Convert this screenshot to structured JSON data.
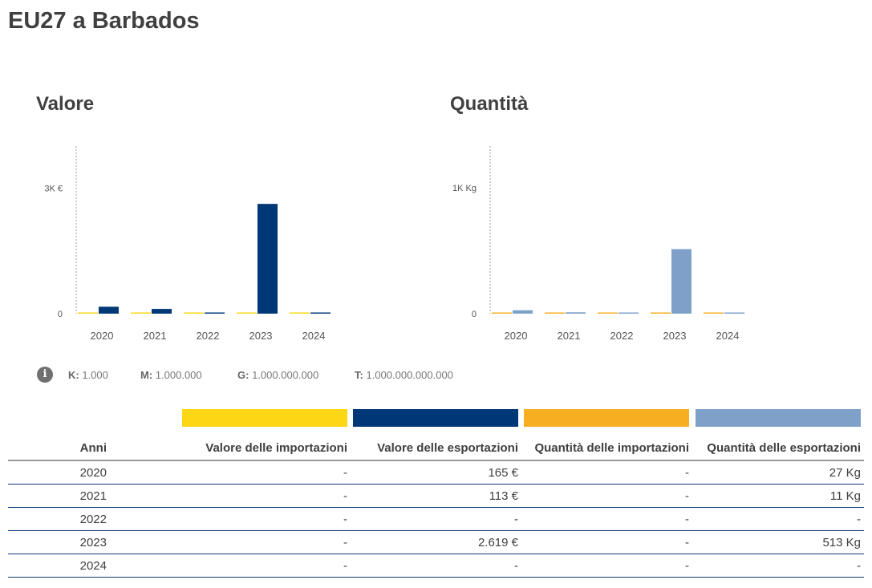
{
  "title": "EU27 a Barbados",
  "colors": {
    "imp_val": "#fdd616",
    "exp_val": "#003776",
    "imp_qty": "#f8ae21",
    "exp_qty": "#7fa1c9"
  },
  "chart_data": [
    {
      "type": "bar",
      "title": "Valore",
      "categories": [
        "2020",
        "2021",
        "2022",
        "2023",
        "2024"
      ],
      "series": [
        {
          "name": "Valore delle importazioni",
          "values": [
            0,
            0,
            0,
            0,
            0
          ]
        },
        {
          "name": "Valore delle esportazioni",
          "values": [
            165,
            113,
            0,
            2619,
            0
          ]
        }
      ],
      "yticks": [
        {
          "value": 0,
          "label": "0"
        },
        {
          "value": 3000,
          "label": "3K €"
        }
      ],
      "ylim": [
        0,
        4000
      ]
    },
    {
      "type": "bar",
      "title": "Quantità",
      "categories": [
        "2020",
        "2021",
        "2022",
        "2023",
        "2024"
      ],
      "series": [
        {
          "name": "Quantità delle importazioni",
          "values": [
            0,
            0,
            0,
            0,
            0
          ]
        },
        {
          "name": "Quantità delle esportazioni",
          "values": [
            27,
            11,
            0,
            513,
            0
          ]
        }
      ],
      "yticks": [
        {
          "value": 0,
          "label": "0"
        },
        {
          "value": 1000,
          "label": "1K Kg"
        }
      ],
      "ylim": [
        0,
        1333
      ]
    }
  ],
  "units": [
    {
      "k": "K:",
      "v": "1.000"
    },
    {
      "k": "M:",
      "v": "1.000.000"
    },
    {
      "k": "G:",
      "v": "1.000.000.000"
    },
    {
      "k": "T:",
      "v": "1.000.000.000.000"
    }
  ],
  "table": {
    "headers": [
      "Anni",
      "Valore delle importazioni",
      "Valore delle esportazioni",
      "Quantità delle importazioni",
      "Quantità delle esportazioni"
    ],
    "rows": [
      [
        "2020",
        "-",
        "165 €",
        "-",
        "27 Kg"
      ],
      [
        "2021",
        "-",
        "113 €",
        "-",
        "11 Kg"
      ],
      [
        "2022",
        "-",
        "-",
        "-",
        "-"
      ],
      [
        "2023",
        "-",
        "2.619 €",
        "-",
        "513 Kg"
      ],
      [
        "2024",
        "-",
        "-",
        "-",
        "-"
      ]
    ]
  }
}
